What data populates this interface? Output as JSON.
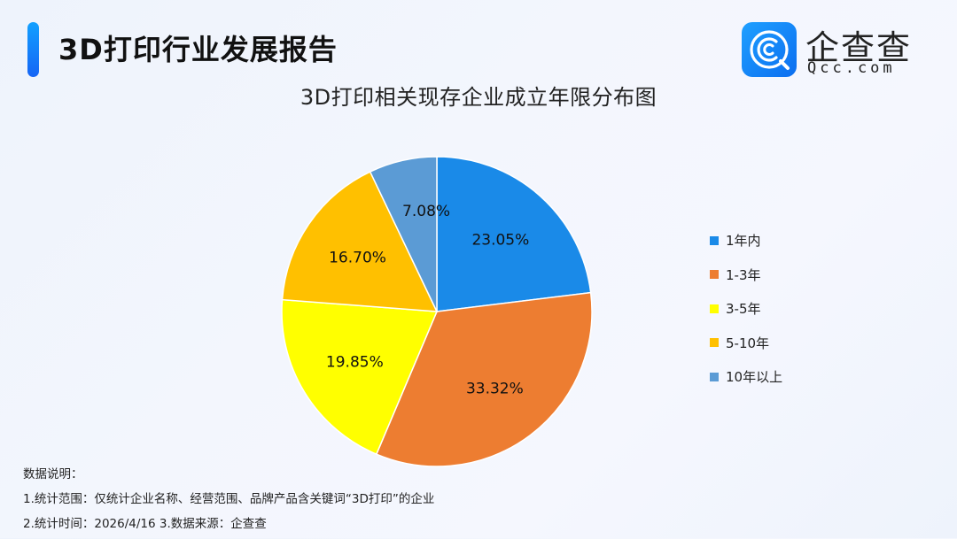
{
  "header": {
    "title": "3D打印行业发展报告",
    "accent_color": "#1a7cff"
  },
  "logo": {
    "cn": "企查查",
    "en": "Qcc.com",
    "icon": "qcc-logo-icon"
  },
  "chart_data": {
    "type": "pie",
    "title": "3D打印相关现存企业成立年限分布图",
    "categories": [
      "1年内",
      "1-3年",
      "3-5年",
      "5-10年",
      "10年以上"
    ],
    "values": [
      23.05,
      33.32,
      19.85,
      16.7,
      7.08
    ],
    "labels": [
      "23.05%",
      "33.32%",
      "19.85%",
      "16.70%",
      "7.08%"
    ],
    "colors": [
      "#1a8ae8",
      "#ed7d31",
      "#ffff00",
      "#ffc000",
      "#5b9bd5"
    ],
    "start_angle": "12 o'clock",
    "direction": "clockwise",
    "legend_position": "right",
    "unit": "%"
  },
  "legend": {
    "items": [
      {
        "label": "1年内",
        "color": "#1a8ae8"
      },
      {
        "label": "1-3年",
        "color": "#ed7d31"
      },
      {
        "label": "3-5年",
        "color": "#ffff00"
      },
      {
        "label": "5-10年",
        "color": "#ffc000"
      },
      {
        "label": "10年以上",
        "color": "#5b9bd5"
      }
    ]
  },
  "notes": {
    "heading": "数据说明：",
    "line1": "1.统计范围：仅统计企业名称、经营范围、品牌产品含关键词“3D打印”的企业",
    "line2": "2.统计时间：2026/4/16  3.数据来源：企查查"
  }
}
